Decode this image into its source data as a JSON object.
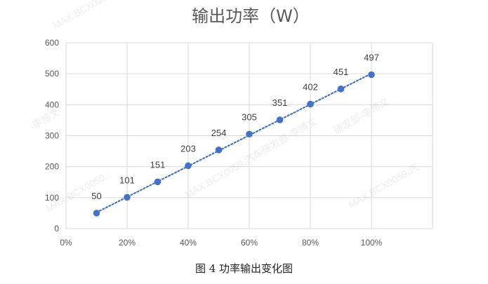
{
  "chart_data": {
    "type": "line",
    "title": "输出功率（W）",
    "xlabel": "",
    "ylabel": "",
    "x": [
      "0%",
      "10%",
      "20%",
      "30%",
      "40%",
      "50%",
      "60%",
      "70%",
      "80%",
      "90%",
      "100%"
    ],
    "x_ticks": [
      "0%",
      "20%",
      "40%",
      "60%",
      "80%",
      "100%"
    ],
    "y_ticks": [
      "0",
      "100",
      "200",
      "300",
      "400",
      "500",
      "600"
    ],
    "ylim": [
      0,
      600
    ],
    "xlim": [
      0,
      120
    ],
    "series": [
      {
        "name": "",
        "x": [
          10,
          20,
          30,
          40,
          50,
          60,
          70,
          80,
          90,
          100
        ],
        "values": [
          50,
          101,
          151,
          203,
          254,
          305,
          351,
          402,
          451,
          497
        ],
        "labels": [
          "50",
          "101",
          "151",
          "203",
          "254",
          "305",
          "351",
          "402",
          "451",
          "497"
        ]
      }
    ],
    "trendline": "linear, dotted",
    "grid": true,
    "legend": "none",
    "colors": {
      "series": "#4472C4",
      "grid": "#d9d9d9",
      "text": "#595959"
    }
  },
  "caption": "图 4  功率输出变化图",
  "watermarks": [
    "MAX.BCX0059",
    "-李博文",
    "MAX.BCX0059,;",
    "MAX.BCX0059,汽车研发部-李博文",
    "研发部-李博文",
    "MAX.BCX0059,汽"
  ]
}
